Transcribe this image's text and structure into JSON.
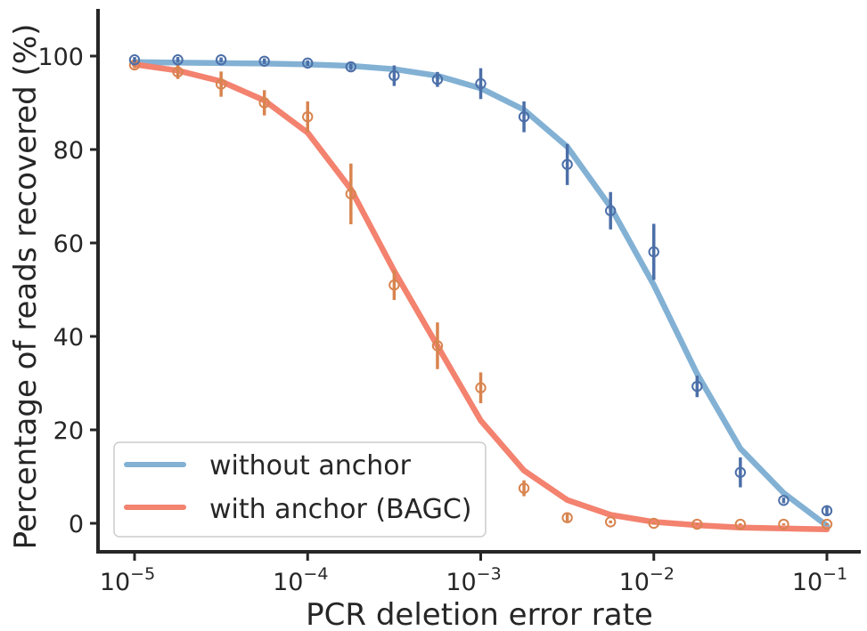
{
  "chart_data": {
    "type": "line",
    "title": "",
    "xlabel": "PCR deletion error rate",
    "ylabel": "Percentage of reads recovered (%)",
    "xscale": "log",
    "xlim": [
      6.6e-06,
      0.155
    ],
    "ylim": [
      -6,
      110
    ],
    "x_ticks": [
      {
        "value": 1e-05,
        "base": "10",
        "exp": "−5"
      },
      {
        "value": 0.0001,
        "base": "10",
        "exp": "−4"
      },
      {
        "value": 0.001,
        "base": "10",
        "exp": "−3"
      },
      {
        "value": 0.01,
        "base": "10",
        "exp": "−2"
      },
      {
        "value": 0.1,
        "base": "10",
        "exp": "−1"
      }
    ],
    "y_ticks": [
      0,
      20,
      40,
      60,
      80,
      100
    ],
    "y_tick_labels": [
      "0",
      "20",
      "40",
      "60",
      "80",
      "100"
    ],
    "grid": false,
    "legend": {
      "placement": "lower-left"
    },
    "x_log10": [
      -5,
      -4.75,
      -4.5,
      -4.25,
      -4,
      -3.75,
      -3.5,
      -3.25,
      -3,
      -2.75,
      -2.5,
      -2.25,
      -2,
      -1.75,
      -1.5,
      -1.25,
      -1
    ],
    "series": [
      {
        "name": "without anchor",
        "line_color": "#82b1d4",
        "marker_color": "#4c6fa8",
        "fit": [
          98.7,
          98.6,
          98.5,
          98.4,
          98.2,
          97.9,
          97.2,
          95.8,
          93.1,
          88.5,
          80.6,
          67.7,
          51.0,
          32.0,
          16.0,
          6.5,
          -0.5
        ],
        "observed": [
          99.2,
          99.2,
          99.2,
          98.9,
          98.5,
          97.7,
          95.8,
          95.0,
          94.1,
          87.0,
          76.8,
          66.9,
          58.1,
          29.3,
          10.9,
          4.9,
          2.7
        ],
        "error": [
          0.6,
          0.6,
          0.5,
          0.6,
          0.6,
          0.7,
          2.2,
          1.6,
          3.3,
          3.3,
          4.4,
          4.0,
          6.0,
          2.3,
          3.2,
          0.6,
          1.0
        ]
      },
      {
        "name": "with anchor (BAGC)",
        "line_color": "#f3826f",
        "marker_color": "#d8844f",
        "fit": [
          98.2,
          96.9,
          94.6,
          90.5,
          83.6,
          71.5,
          54.0,
          38.0,
          22.0,
          11.3,
          5.0,
          1.8,
          0.3,
          -0.4,
          -0.9,
          -1.1,
          -1.3
        ],
        "observed": [
          98.1,
          96.6,
          94.0,
          90.0,
          87.0,
          70.5,
          51.0,
          38.0,
          29.0,
          7.5,
          1.2,
          0.3,
          0.0,
          -0.2,
          -0.2,
          -0.2,
          -0.2
        ],
        "error": [
          0.7,
          1.5,
          2.7,
          2.7,
          3.3,
          6.5,
          3.2,
          5.0,
          3.3,
          1.7,
          0.8,
          0.3,
          0.2,
          0.2,
          0.2,
          0.2,
          0.2
        ]
      }
    ]
  }
}
